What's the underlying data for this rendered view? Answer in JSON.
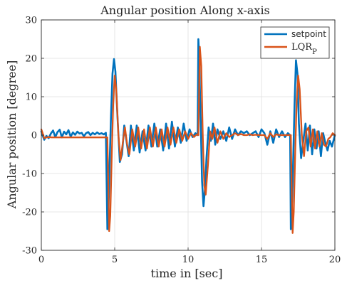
{
  "chart_data": {
    "type": "line",
    "title": "Angular position Along x-axis",
    "xlabel": "time in [sec]",
    "ylabel": "Angular position [degree]",
    "xlim": [
      0,
      20
    ],
    "ylim": [
      -30,
      30
    ],
    "xticks": [
      0,
      5,
      10,
      15,
      20
    ],
    "yticks": [
      -30,
      -20,
      -10,
      0,
      10,
      20,
      30
    ],
    "xtick_labels": [
      "0",
      "5",
      "10",
      "15",
      "20"
    ],
    "ytick_labels": [
      "-30",
      "-20",
      "-10",
      "0",
      "10",
      "20",
      "30"
    ],
    "grid": true,
    "legend_position": "top-right",
    "series": [
      {
        "name": "setpoint",
        "color": "#0072BD",
        "x": [
          0,
          0.05,
          0.2,
          0.35,
          0.5,
          0.65,
          0.8,
          0.95,
          1.1,
          1.25,
          1.4,
          1.55,
          1.7,
          1.85,
          2.0,
          2.15,
          2.3,
          2.45,
          2.6,
          2.75,
          2.9,
          3.05,
          3.2,
          3.35,
          3.5,
          3.65,
          3.8,
          3.95,
          4.1,
          4.25,
          4.4,
          4.5,
          4.55,
          4.65,
          4.75,
          4.85,
          4.95,
          5.05,
          5.2,
          5.35,
          5.5,
          5.65,
          5.8,
          5.95,
          6.1,
          6.3,
          6.5,
          6.7,
          6.9,
          7.1,
          7.3,
          7.5,
          7.7,
          7.9,
          8.1,
          8.3,
          8.5,
          8.7,
          8.9,
          9.1,
          9.3,
          9.5,
          9.7,
          9.9,
          10.1,
          10.3,
          10.5,
          10.65,
          10.7,
          10.75,
          10.85,
          10.95,
          11.05,
          11.15,
          11.25,
          11.4,
          11.55,
          11.7,
          11.85,
          12.0,
          12.2,
          12.4,
          12.6,
          12.8,
          13.0,
          13.2,
          13.4,
          13.6,
          13.8,
          14.0,
          14.2,
          14.4,
          14.6,
          14.8,
          15.0,
          15.2,
          15.4,
          15.6,
          15.8,
          16.0,
          16.2,
          16.4,
          16.6,
          16.8,
          16.95,
          17.0,
          17.05,
          17.15,
          17.25,
          17.35,
          17.45,
          17.55,
          17.7,
          17.85,
          18.0,
          18.15,
          18.3,
          18.45,
          18.6,
          18.75,
          18.9,
          19.05,
          19.2,
          19.35,
          19.5,
          19.65,
          19.8,
          20.0
        ],
        "values": [
          1.0,
          0.3,
          -1.2,
          -0.2,
          -0.8,
          0.4,
          1.2,
          -0.5,
          0.8,
          1.4,
          -0.6,
          0.9,
          0.2,
          1.3,
          -0.4,
          0.7,
          0.1,
          0.9,
          0.4,
          0.6,
          -0.3,
          0.5,
          0.8,
          0.0,
          0.6,
          0.2,
          0.7,
          0.3,
          0.5,
          0.2,
          0.6,
          -24.5,
          -23.5,
          -8.0,
          5.0,
          16.0,
          19.8,
          16.5,
          4.0,
          -7.0,
          -5.0,
          2.5,
          -1.5,
          -5.5,
          2.5,
          -4.0,
          2.5,
          -4.5,
          1.0,
          -4.0,
          2.5,
          -3.0,
          3.0,
          -3.0,
          1.5,
          -4.0,
          3.0,
          -3.5,
          3.5,
          -3.0,
          2.0,
          -2.0,
          3.0,
          -1.5,
          1.5,
          -0.5,
          0.5,
          0.0,
          25.0,
          21.0,
          5.0,
          -12.0,
          -18.5,
          -14.0,
          -6.0,
          2.0,
          -1.5,
          3.0,
          -2.5,
          1.5,
          -1.0,
          1.0,
          -1.5,
          2.0,
          -1.0,
          1.5,
          0.0,
          1.0,
          0.5,
          1.0,
          0.0,
          0.5,
          1.0,
          -0.5,
          1.5,
          0.5,
          -2.5,
          1.0,
          -2.0,
          1.5,
          -0.5,
          1.0,
          -0.5,
          0.5,
          0.0,
          -24.5,
          -22.0,
          -8.0,
          8.0,
          19.5,
          16.0,
          3.0,
          -6.0,
          -1.5,
          3.0,
          -4.0,
          2.5,
          -5.0,
          1.5,
          -3.5,
          1.0,
          -5.5,
          0.5,
          -2.0,
          -4.0,
          -1.5,
          -3.0,
          0.0
        ]
      },
      {
        "name": "LQR_P",
        "color": "#D95319",
        "x": [
          0,
          0.05,
          0.2,
          0.35,
          0.5,
          0.7,
          0.9,
          1.1,
          1.3,
          1.5,
          1.7,
          1.9,
          2.1,
          2.3,
          2.5,
          2.7,
          2.9,
          3.1,
          3.3,
          3.5,
          3.7,
          3.9,
          4.1,
          4.3,
          4.5,
          4.55,
          4.62,
          4.7,
          4.8,
          4.9,
          5.0,
          5.1,
          5.25,
          5.4,
          5.55,
          5.7,
          5.85,
          6.0,
          6.2,
          6.4,
          6.6,
          6.8,
          7.0,
          7.2,
          7.4,
          7.6,
          7.8,
          8.0,
          8.2,
          8.4,
          8.6,
          8.8,
          9.0,
          9.2,
          9.4,
          9.6,
          9.8,
          10.0,
          10.2,
          10.4,
          10.6,
          10.7,
          10.75,
          10.8,
          10.9,
          11.0,
          11.1,
          11.2,
          11.35,
          11.5,
          11.65,
          11.8,
          12.0,
          12.2,
          12.4,
          12.6,
          12.8,
          13.0,
          13.2,
          13.4,
          13.6,
          13.8,
          14.0,
          14.2,
          14.4,
          14.6,
          14.8,
          15.0,
          15.2,
          15.4,
          15.6,
          15.8,
          16.0,
          16.2,
          16.4,
          16.6,
          16.8,
          17.0,
          17.05,
          17.12,
          17.2,
          17.3,
          17.4,
          17.5,
          17.6,
          17.75,
          17.9,
          18.05,
          18.2,
          18.35,
          18.5,
          18.65,
          18.8,
          18.95,
          19.1,
          19.25,
          19.4,
          19.55,
          19.7,
          19.85,
          20.0
        ],
        "values": [
          1.5,
          1.0,
          -0.8,
          -0.6,
          -0.5,
          -0.6,
          -0.6,
          -0.6,
          -0.6,
          -0.6,
          -0.6,
          -0.6,
          -0.6,
          -0.6,
          -0.6,
          -0.6,
          -0.6,
          -0.6,
          -0.6,
          -0.6,
          -0.6,
          -0.6,
          -0.6,
          -0.6,
          -0.6,
          -10.0,
          -25.0,
          -21.0,
          -5.0,
          8.0,
          15.5,
          12.0,
          0.0,
          -6.5,
          -2.0,
          2.0,
          -2.5,
          -5.0,
          1.5,
          -3.0,
          2.0,
          -3.5,
          1.5,
          -3.5,
          2.0,
          -3.0,
          2.0,
          -3.0,
          1.5,
          -3.0,
          2.0,
          -2.5,
          2.0,
          -2.0,
          1.5,
          -1.5,
          1.0,
          -1.0,
          0.5,
          -0.5,
          0.2,
          0.0,
          10.0,
          23.0,
          18.0,
          0.0,
          -13.0,
          -15.5,
          -8.0,
          1.0,
          -1.0,
          2.0,
          -2.0,
          1.0,
          -1.0,
          0.5,
          -0.5,
          0.0,
          0.5,
          0.0,
          0.3,
          0.0,
          0.0,
          0.2,
          0.0,
          0.1,
          0.0,
          0.0,
          0.0,
          -1.0,
          0.5,
          -0.5,
          0.2,
          0.0,
          0.0,
          0.0,
          0.0,
          0.0,
          -12.0,
          -25.5,
          -20.0,
          -4.0,
          9.0,
          15.5,
          12.0,
          0.0,
          -5.5,
          1.0,
          2.0,
          -3.0,
          1.5,
          -3.5,
          1.0,
          -3.0,
          0.5,
          -2.5,
          -3.0,
          -1.0,
          -0.5,
          0.5,
          0.0
        ]
      }
    ]
  }
}
